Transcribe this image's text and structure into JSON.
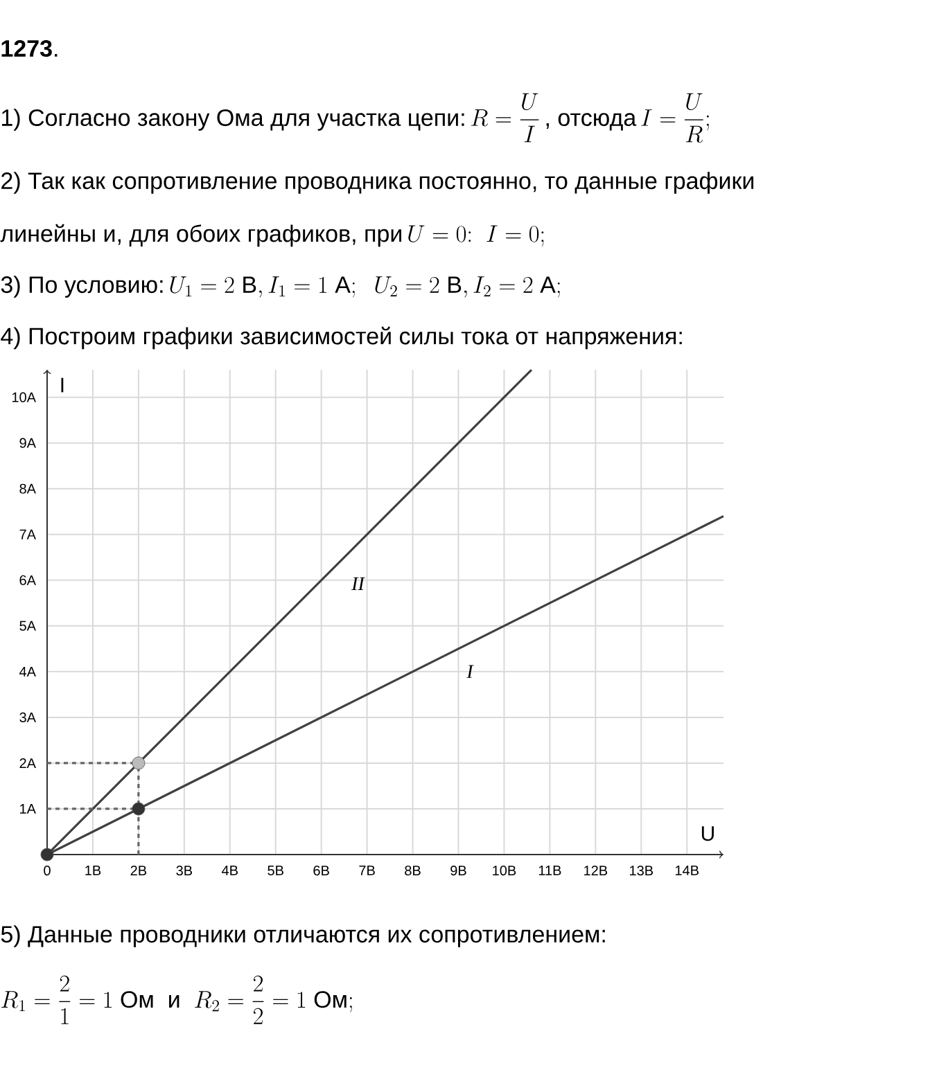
{
  "chart_data": {
    "type": "line",
    "title": "**1273**.",
    "annotations": [
      "1) Согласно закону Ома для участка цепи:",
      "R=\\dfrac{U}{I}",
      ", отсюда",
      "I=\\dfrac{U}{R};",
      "2) Так как сопротивление проводника постоянно, то данные графики",
      "линейны и, для обоих графиков, при",
      "U=0{:}\\ \\ I=0;",
      "3) По условию:",
      "U_1=2\\text{ В}, I_1=1\\text{ А};\\ \\ U_2=2\\text{ В}, I_2=2\\text{ А};",
      "4) Построим графики зависимостей силы тока от напряжения:",
      "5) Данные проводники отличаются их сопротивлением:",
      "R_1=\\dfrac{2}{1}=1\\text{ Ом}\\ \\text{ и }\\ R_2=\\dfrac{2}{2}=1\\text{ Ом};"
    ],
    "xlabel": "U",
    "ylabel": "I",
    "grid": true,
    "xlim": [
      0,
      14.8
    ],
    "ylim": [
      0,
      10.6
    ],
    "xticks": [
      0,
      {
        "value": 1,
        "label": "1В"
      },
      {
        "value": 2,
        "label": "2В"
      },
      {
        "value": 3,
        "label": "3В"
      },
      {
        "value": 4,
        "label": "4В"
      },
      {
        "value": 5,
        "label": "5В"
      },
      {
        "value": 6,
        "label": "6В"
      },
      {
        "value": 7,
        "label": "7В"
      },
      {
        "value": 8,
        "label": "8В"
      },
      {
        "value": 9,
        "label": "9В"
      },
      {
        "value": 10,
        "label": "10В"
      },
      {
        "value": 11,
        "label": "11В"
      },
      {
        "value": 12,
        "label": "12В"
      },
      {
        "value": 13,
        "label": "13В"
      },
      {
        "value": 14,
        "label": "14В"
      }
    ],
    "yticks": [
      {
        "value": 1,
        "label": "1A"
      },
      {
        "value": 2,
        "label": "2A"
      },
      {
        "value": 3,
        "label": "3A"
      },
      {
        "value": 4,
        "label": "4A"
      },
      {
        "value": 5,
        "label": "5A"
      },
      {
        "value": 6,
        "label": "6A"
      },
      {
        "value": 7,
        "label": "7A"
      },
      {
        "value": 8,
        "label": "8A"
      },
      {
        "value": 9,
        "label": "9A"
      },
      {
        "value": 10,
        "label": "10A"
      }
    ],
    "series": [
      {
        "name": "I",
        "color": "#404040",
        "x": [
          0,
          2,
          14.8
        ],
        "values": [
          0,
          1,
          7.4
        ]
      },
      {
        "name": "II",
        "color": "#404040",
        "x": [
          0,
          2,
          10.6
        ],
        "values": [
          0,
          2,
          10.6
        ]
      },
      {
        "color": "#666666",
        "line_style": "dashed",
        "x": [
          0,
          2
        ],
        "values": [
          1,
          1
        ]
      },
      {
        "color": "#666666",
        "line_style": "dashed",
        "x": [
          0,
          2
        ],
        "values": [
          2,
          2
        ]
      },
      {
        "color": "#666666",
        "line_style": "dashed",
        "x": [
          2,
          2
        ],
        "values": [
          0,
          2
        ]
      },
      {
        "type": "scatter",
        "marker": "circle",
        "colors": [
          "#333333",
          "#333333",
          "#bbbbbb"
        ],
        "x": [
          0,
          2,
          2
        ],
        "values": [
          0,
          1,
          2
        ]
      }
    ]
  }
}
